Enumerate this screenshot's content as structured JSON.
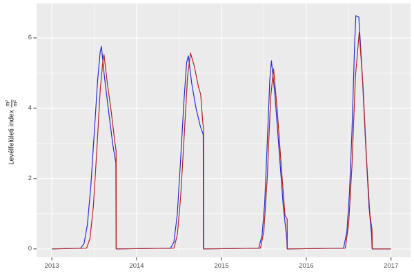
{
  "figure": {
    "background": "#ffffff",
    "panel_background": "#ebebeb",
    "grid_color": "#ffffff",
    "tick_mark_color": "#333333",
    "tick_label_color": "#4d4d4d",
    "axis_title_color": "#1a1a1a"
  },
  "y_axis": {
    "title_text": "Levélfelületi index",
    "fraction_numerator": "m²",
    "fraction_denominator": "m²"
  },
  "chart_data": {
    "type": "line",
    "title": "",
    "xlabel": "",
    "ylabel": "Levélfelületi index m²/m²",
    "grid": true,
    "legend": "none",
    "xlim": [
      2012.82,
      2017.23
    ],
    "ylim": [
      -0.24,
      6.98
    ],
    "x_ticks": [
      2013,
      2014,
      2015,
      2016,
      2017
    ],
    "x_tick_labels": [
      "2013",
      "2014",
      "2015",
      "2016",
      "2017"
    ],
    "x_minor_ticks": [
      2013.5,
      2014.5,
      2015.5,
      2016.5
    ],
    "y_ticks": [
      0,
      2,
      4,
      6
    ],
    "y_tick_labels": [
      "0",
      "2",
      "4",
      "6"
    ],
    "y_minor_ticks": [
      1,
      3,
      5
    ],
    "series": [
      {
        "name": "blue-line",
        "color": "#2a2ad0",
        "points": [
          [
            2013.0,
            0
          ],
          [
            2013.34,
            0.02
          ],
          [
            2013.38,
            0.15
          ],
          [
            2013.42,
            0.7
          ],
          [
            2013.46,
            1.8
          ],
          [
            2013.5,
            3.3
          ],
          [
            2013.54,
            4.8
          ],
          [
            2013.57,
            5.6
          ],
          [
            2013.585,
            5.76
          ],
          [
            2013.62,
            4.9
          ],
          [
            2013.67,
            3.9
          ],
          [
            2013.72,
            2.95
          ],
          [
            2013.755,
            2.45
          ],
          [
            2013.758,
            0
          ],
          [
            2014.4,
            0.02
          ],
          [
            2014.44,
            0.2
          ],
          [
            2014.48,
            1.0
          ],
          [
            2014.52,
            2.6
          ],
          [
            2014.56,
            4.3
          ],
          [
            2014.59,
            5.3
          ],
          [
            2014.61,
            5.49
          ],
          [
            2014.65,
            4.7
          ],
          [
            2014.7,
            4.0
          ],
          [
            2014.75,
            3.5
          ],
          [
            2014.785,
            3.25
          ],
          [
            2014.788,
            0
          ],
          [
            2015.44,
            0.02
          ],
          [
            2015.48,
            0.4
          ],
          [
            2015.51,
            1.3
          ],
          [
            2015.54,
            3.0
          ],
          [
            2015.57,
            4.8
          ],
          [
            2015.59,
            5.35
          ],
          [
            2015.63,
            4.4
          ],
          [
            2015.68,
            2.8
          ],
          [
            2015.73,
            1.2
          ],
          [
            2015.77,
            0.3
          ],
          [
            2015.775,
            0
          ],
          [
            2016.44,
            0.02
          ],
          [
            2016.48,
            0.5
          ],
          [
            2016.51,
            1.6
          ],
          [
            2016.54,
            3.4
          ],
          [
            2016.57,
            5.8
          ],
          [
            2016.585,
            6.63
          ],
          [
            2016.62,
            6.6
          ],
          [
            2016.66,
            5.0
          ],
          [
            2016.7,
            3.0
          ],
          [
            2016.74,
            1.2
          ],
          [
            2016.77,
            0.4
          ],
          [
            2016.777,
            0
          ],
          [
            2017.0,
            0
          ]
        ]
      },
      {
        "name": "red-line",
        "color": "#b22222",
        "points": [
          [
            2013.0,
            0
          ],
          [
            2013.41,
            0.02
          ],
          [
            2013.45,
            0.3
          ],
          [
            2013.49,
            1.2
          ],
          [
            2013.53,
            2.8
          ],
          [
            2013.57,
            4.5
          ],
          [
            2013.6,
            5.3
          ],
          [
            2013.615,
            5.53
          ],
          [
            2013.65,
            4.8
          ],
          [
            2013.7,
            3.9
          ],
          [
            2013.74,
            3.1
          ],
          [
            2013.758,
            2.78
          ],
          [
            2013.76,
            0
          ],
          [
            2014.44,
            0.02
          ],
          [
            2014.48,
            0.4
          ],
          [
            2014.52,
            1.5
          ],
          [
            2014.56,
            3.2
          ],
          [
            2014.6,
            4.9
          ],
          [
            2014.635,
            5.57
          ],
          [
            2014.68,
            5.2
          ],
          [
            2014.73,
            4.6
          ],
          [
            2014.755,
            4.4
          ],
          [
            2014.78,
            3.6
          ],
          [
            2014.79,
            3.4
          ],
          [
            2014.792,
            0
          ],
          [
            2015.46,
            0.02
          ],
          [
            2015.5,
            0.5
          ],
          [
            2015.54,
            2.0
          ],
          [
            2015.58,
            4.3
          ],
          [
            2015.615,
            5.12
          ],
          [
            2015.66,
            3.9
          ],
          [
            2015.71,
            2.2
          ],
          [
            2015.75,
            0.95
          ],
          [
            2015.775,
            0.85
          ],
          [
            2015.777,
            0
          ],
          [
            2016.46,
            0.02
          ],
          [
            2016.5,
            0.7
          ],
          [
            2016.54,
            2.4
          ],
          [
            2016.58,
            4.9
          ],
          [
            2016.625,
            6.16
          ],
          [
            2016.67,
            4.6
          ],
          [
            2016.71,
            2.6
          ],
          [
            2016.75,
            1.0
          ],
          [
            2016.775,
            0.55
          ],
          [
            2016.78,
            0
          ],
          [
            2017.0,
            0
          ]
        ]
      }
    ]
  }
}
